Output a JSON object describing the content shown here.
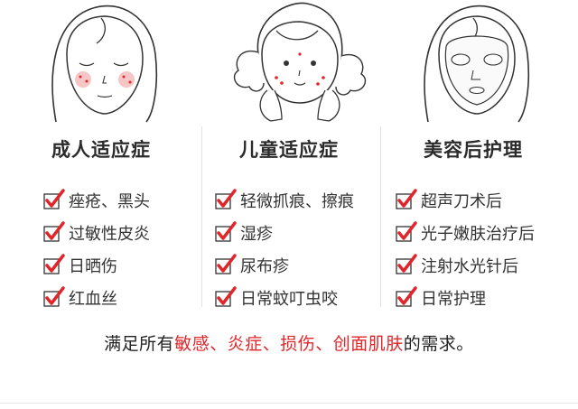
{
  "columns": [
    {
      "heading": "成人适应症",
      "illustration": "adult-face-illustration",
      "items": [
        "痤疮、黑头",
        "过敏性皮炎",
        "日晒伤",
        "红血丝"
      ]
    },
    {
      "heading": "儿童适应症",
      "illustration": "child-face-illustration",
      "items": [
        "轻微抓痕、擦痕",
        "湿疹",
        "尿布疹",
        "日常蚊叮虫咬"
      ]
    },
    {
      "heading": "美容后护理",
      "illustration": "face-mask-illustration",
      "items": [
        "超声刀术后",
        "光子嫩肤治疗后",
        "注射水光针后",
        "日常护理"
      ]
    }
  ],
  "footer": {
    "prefix": "满足所有",
    "highlights": [
      "敏感",
      "炎症",
      "损伤",
      "创面肌肤"
    ],
    "separator": "、",
    "suffix": "的需求。"
  },
  "colors": {
    "highlight": "#e0262a",
    "check": "#e0262a",
    "text": "#333333",
    "heading": "#2b2b2b"
  },
  "icons": {
    "bullet": "red-checkmark-icon"
  }
}
